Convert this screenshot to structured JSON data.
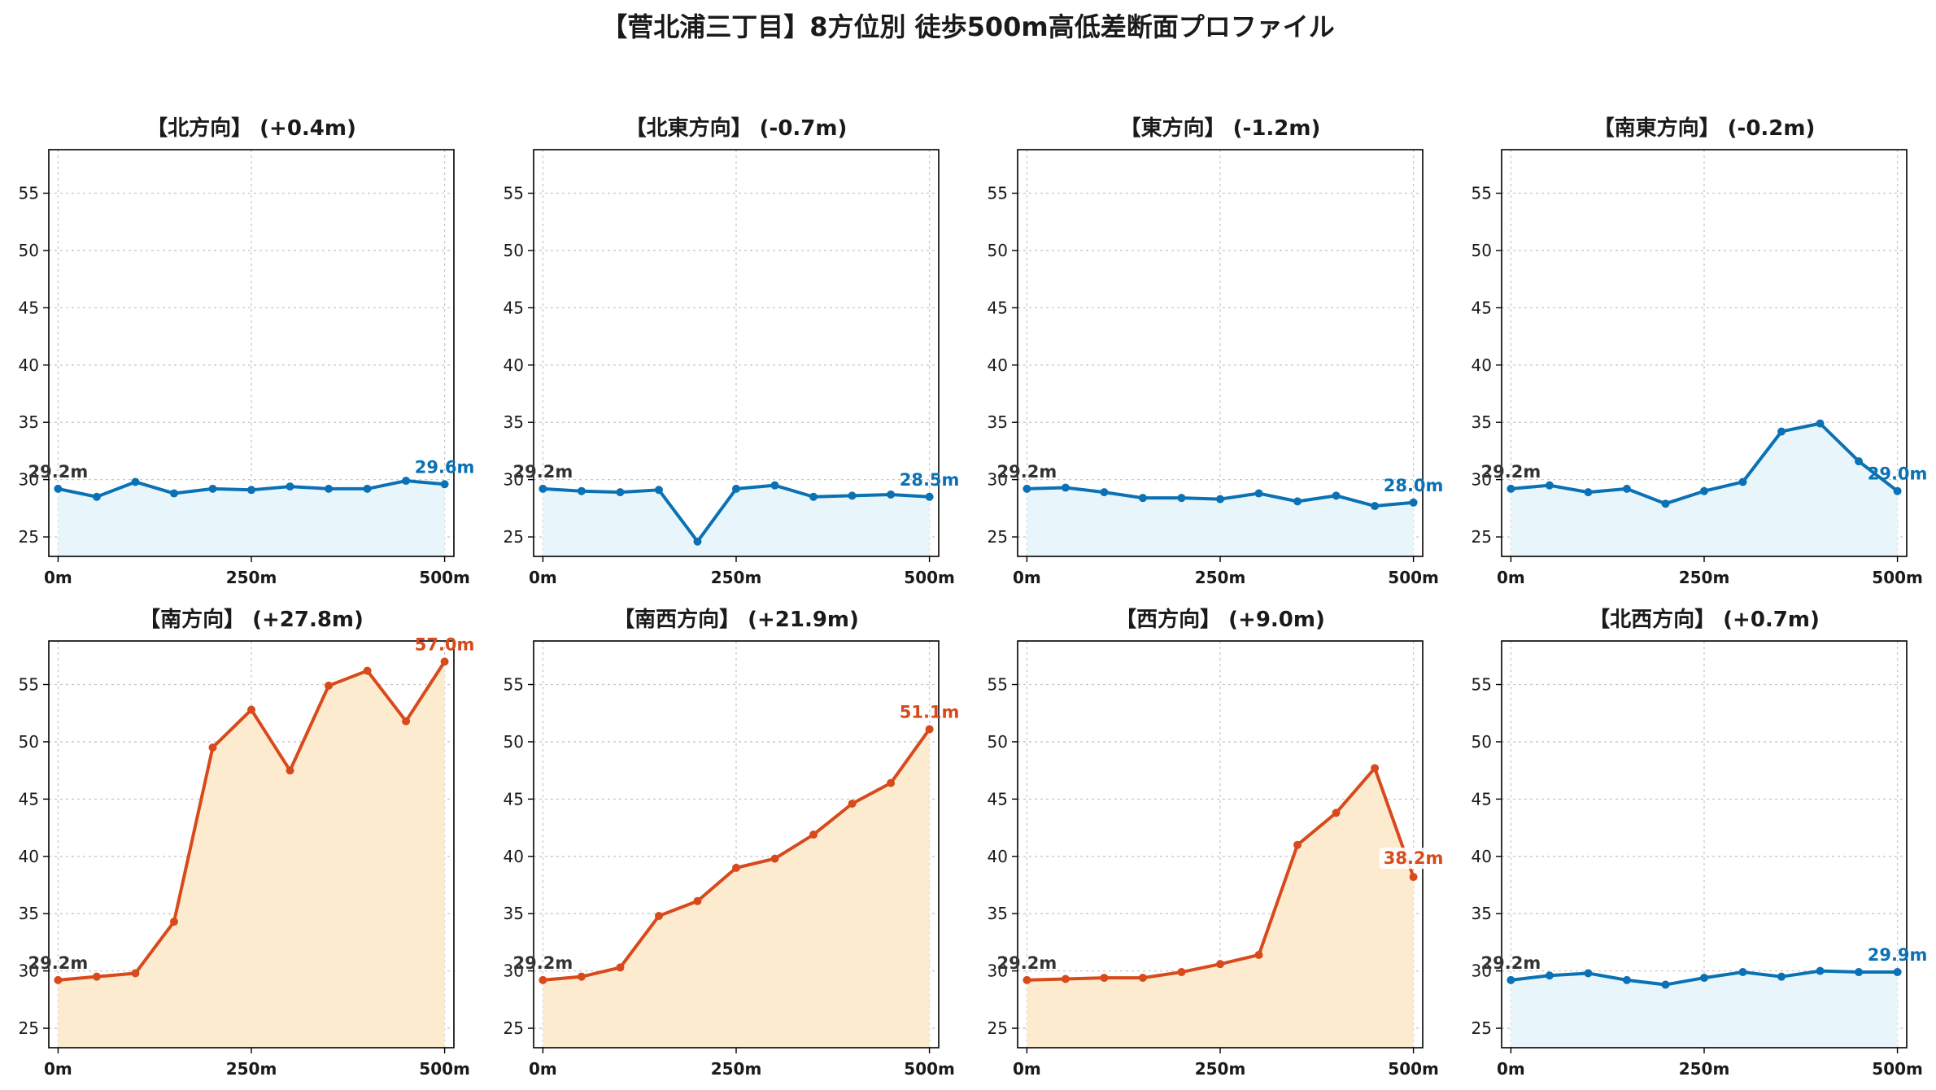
{
  "page": {
    "title": "【菅北浦三丁目】8方位別 徒歩500m高低差断面プロファイル"
  },
  "colors": {
    "flat_line": "#0a72b4",
    "flat_fill": "#e8f5fb",
    "hill_line": "#d84a1b",
    "hill_fill": "#fdebd0",
    "start_label": "#333333",
    "grid": "#c8c8c8"
  },
  "chart_data": [
    {
      "type": "area",
      "title": "【北方向】 (+0.4m)",
      "theme": "flat",
      "x": [
        0,
        50,
        100,
        150,
        200,
        250,
        300,
        350,
        400,
        450,
        500
      ],
      "values": [
        29.2,
        28.5,
        29.8,
        28.8,
        29.2,
        29.1,
        29.4,
        29.2,
        29.2,
        29.9,
        29.6
      ],
      "xticks": [
        "0m",
        "250m",
        "500m"
      ],
      "yticks": [
        25,
        30,
        35,
        40,
        45,
        50,
        55
      ],
      "ylim": [
        23.3,
        58.8
      ],
      "xlim": [
        -12,
        512
      ],
      "grid": true,
      "start_label": "29.2m",
      "end_label": "29.6m"
    },
    {
      "type": "area",
      "title": "【北東方向】 (-0.7m)",
      "theme": "flat",
      "x": [
        0,
        50,
        100,
        150,
        200,
        250,
        300,
        350,
        400,
        450,
        500
      ],
      "values": [
        29.2,
        29.0,
        28.9,
        29.1,
        24.6,
        29.2,
        29.5,
        28.5,
        28.6,
        28.7,
        28.5
      ],
      "xticks": [
        "0m",
        "250m",
        "500m"
      ],
      "yticks": [
        25,
        30,
        35,
        40,
        45,
        50,
        55
      ],
      "ylim": [
        23.3,
        58.8
      ],
      "xlim": [
        -12,
        512
      ],
      "grid": true,
      "start_label": "29.2m",
      "end_label": "28.5m"
    },
    {
      "type": "area",
      "title": "【東方向】 (-1.2m)",
      "theme": "flat",
      "x": [
        0,
        50,
        100,
        150,
        200,
        250,
        300,
        350,
        400,
        450,
        500
      ],
      "values": [
        29.2,
        29.3,
        28.9,
        28.4,
        28.4,
        28.3,
        28.8,
        28.1,
        28.6,
        27.7,
        28.0
      ],
      "xticks": [
        "0m",
        "250m",
        "500m"
      ],
      "yticks": [
        25,
        30,
        35,
        40,
        45,
        50,
        55
      ],
      "ylim": [
        23.3,
        58.8
      ],
      "xlim": [
        -12,
        512
      ],
      "grid": true,
      "start_label": "29.2m",
      "end_label": "28.0m"
    },
    {
      "type": "area",
      "title": "【南東方向】 (-0.2m)",
      "theme": "flat",
      "x": [
        0,
        50,
        100,
        150,
        200,
        250,
        300,
        350,
        400,
        450,
        500
      ],
      "values": [
        29.2,
        29.5,
        28.9,
        29.2,
        27.9,
        29.0,
        29.8,
        34.2,
        34.9,
        31.6,
        29.0
      ],
      "xticks": [
        "0m",
        "250m",
        "500m"
      ],
      "yticks": [
        25,
        30,
        35,
        40,
        45,
        50,
        55
      ],
      "ylim": [
        23.3,
        58.8
      ],
      "xlim": [
        -12,
        512
      ],
      "grid": true,
      "start_label": "29.2m",
      "end_label": "29.0m"
    },
    {
      "type": "area",
      "title": "【南方向】 (+27.8m)",
      "theme": "hill",
      "x": [
        0,
        50,
        100,
        150,
        200,
        250,
        300,
        350,
        400,
        450,
        500
      ],
      "values": [
        29.2,
        29.5,
        29.8,
        34.3,
        49.5,
        52.8,
        47.5,
        54.9,
        56.2,
        51.8,
        57.0
      ],
      "xticks": [
        "0m",
        "250m",
        "500m"
      ],
      "yticks": [
        25,
        30,
        35,
        40,
        45,
        50,
        55
      ],
      "ylim": [
        23.3,
        58.8
      ],
      "xlim": [
        -12,
        512
      ],
      "grid": true,
      "start_label": "29.2m",
      "end_label": "57.0m"
    },
    {
      "type": "area",
      "title": "【南西方向】 (+21.9m)",
      "theme": "hill",
      "x": [
        0,
        50,
        100,
        150,
        200,
        250,
        300,
        350,
        400,
        450,
        500
      ],
      "values": [
        29.2,
        29.5,
        30.3,
        34.8,
        36.1,
        39.0,
        39.8,
        41.9,
        44.6,
        46.4,
        51.1
      ],
      "xticks": [
        "0m",
        "250m",
        "500m"
      ],
      "yticks": [
        25,
        30,
        35,
        40,
        45,
        50,
        55
      ],
      "ylim": [
        23.3,
        58.8
      ],
      "xlim": [
        -12,
        512
      ],
      "grid": true,
      "start_label": "29.2m",
      "end_label": "51.1m"
    },
    {
      "type": "area",
      "title": "【西方向】 (+9.0m)",
      "theme": "hill",
      "x": [
        0,
        50,
        100,
        150,
        200,
        250,
        300,
        350,
        400,
        450,
        500
      ],
      "values": [
        29.2,
        29.3,
        29.4,
        29.4,
        29.9,
        30.6,
        31.4,
        41.0,
        43.8,
        47.7,
        38.2
      ],
      "xticks": [
        "0m",
        "250m",
        "500m"
      ],
      "yticks": [
        25,
        30,
        35,
        40,
        45,
        50,
        55
      ],
      "ylim": [
        23.3,
        58.8
      ],
      "xlim": [
        -12,
        512
      ],
      "grid": true,
      "start_label": "29.2m",
      "end_label": "38.2m"
    },
    {
      "type": "area",
      "title": "【北西方向】 (+0.7m)",
      "theme": "flat",
      "x": [
        0,
        50,
        100,
        150,
        200,
        250,
        300,
        350,
        400,
        450,
        500
      ],
      "values": [
        29.2,
        29.6,
        29.8,
        29.2,
        28.8,
        29.4,
        29.9,
        29.5,
        30.0,
        29.9,
        29.9
      ],
      "xticks": [
        "0m",
        "250m",
        "500m"
      ],
      "yticks": [
        25,
        30,
        35,
        40,
        45,
        50,
        55
      ],
      "ylim": [
        23.3,
        58.8
      ],
      "xlim": [
        -12,
        512
      ],
      "grid": true,
      "start_label": "29.2m",
      "end_label": "29.9m"
    }
  ]
}
